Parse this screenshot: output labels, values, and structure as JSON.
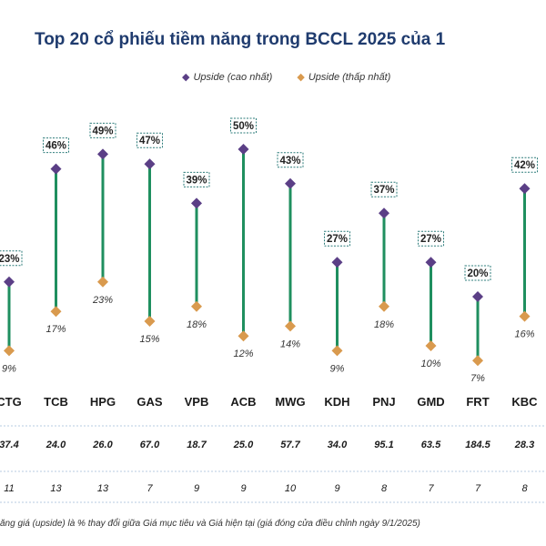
{
  "title": "Top 20 cổ phiếu tiềm năng trong BCCL 2025 của 1",
  "legend": {
    "high": {
      "label": "Upside (cao nhất)",
      "color": "#5b3f86",
      "icon": "diamond"
    },
    "low": {
      "label": "Upside (thấp nhất)",
      "color": "#d99a4e",
      "icon": "diamond"
    }
  },
  "colors": {
    "stem": "#1f8f5f",
    "box_border": "#2e7d7b",
    "divider": "#b7cbe0"
  },
  "chart_data": {
    "type": "dumbbell",
    "categories": [
      "CTG",
      "TCB",
      "HPG",
      "GAS",
      "VPB",
      "ACB",
      "MWG",
      "KDH",
      "PNJ",
      "GMD",
      "FRT",
      "KBC"
    ],
    "series": [
      {
        "name": "Upside (cao nhất)",
        "values": [
          23,
          46,
          49,
          47,
          39,
          50,
          43,
          27,
          37,
          27,
          20,
          42
        ],
        "labels": [
          "23%",
          "46%",
          "49%",
          "47%",
          "39%",
          "50%",
          "43%",
          "27%",
          "37%",
          "27%",
          "20%",
          "42%"
        ]
      },
      {
        "name": "Upside (thấp nhất)",
        "values": [
          9,
          17,
          23,
          15,
          18,
          12,
          14,
          9,
          18,
          10,
          7,
          16
        ],
        "labels": [
          "9%",
          "17%",
          "23%",
          "15%",
          "18%",
          "12%",
          "14%",
          "9%",
          "18%",
          "10%",
          "7%",
          "16%"
        ]
      }
    ],
    "rows": [
      {
        "values": [
          "37.4",
          "24.0",
          "26.0",
          "67.0",
          "18.7",
          "25.0",
          "57.7",
          "34.0",
          "95.1",
          "63.5",
          "184.5",
          "28.3"
        ]
      },
      {
        "values": [
          "11",
          "13",
          "13",
          "7",
          "9",
          "9",
          "10",
          "9",
          "8",
          "7",
          "7",
          "8"
        ]
      }
    ]
  },
  "footnote": "ăng giá (upside) là % thay đổi giữa Giá mục tiêu và Giá hiện tại (giá đóng cửa điều chỉnh ngày 9/1/2025)"
}
